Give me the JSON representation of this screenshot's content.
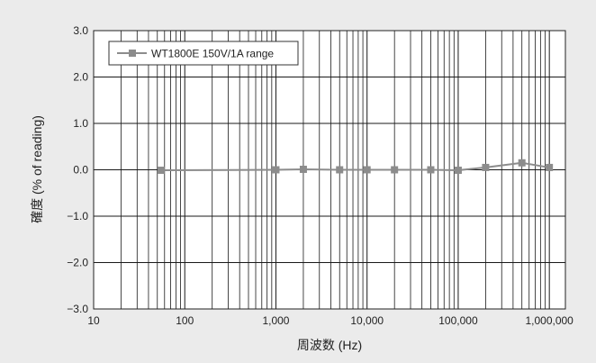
{
  "chart_data": {
    "type": "line",
    "title": "",
    "xlabel": "周波数 (Hz)",
    "ylabel": "確度 (% of reading)",
    "xscale": "log",
    "xlim": [
      10,
      1500000
    ],
    "ylim": [
      -3.0,
      3.0
    ],
    "grid": true,
    "legend_placement": "top-left",
    "x_ticks": [
      {
        "value": 10,
        "label": "10"
      },
      {
        "value": 100,
        "label": "100"
      },
      {
        "value": 1000,
        "label": "1,000"
      },
      {
        "value": 10000,
        "label": "10,000"
      },
      {
        "value": 100000,
        "label": "100,000"
      },
      {
        "value": 1000000,
        "label": "1,000,000"
      }
    ],
    "y_ticks": [
      {
        "value": 3.0,
        "label": "3.0"
      },
      {
        "value": 2.0,
        "label": "2.0"
      },
      {
        "value": 1.0,
        "label": "1.0"
      },
      {
        "value": 0.0,
        "label": "0.0"
      },
      {
        "value": -1.0,
        "label": "−1.0"
      },
      {
        "value": -2.0,
        "label": "−2.0"
      },
      {
        "value": -3.0,
        "label": "−3.0"
      }
    ],
    "series": [
      {
        "name": "WT1800E 150V/1A range",
        "color": "#8c8c8c",
        "marker": "square",
        "x": [
          55,
          1000,
          2000,
          5000,
          10000,
          20000,
          50000,
          100000,
          200000,
          500000,
          1000000
        ],
        "y": [
          -0.01,
          0.0,
          0.01,
          0.0,
          0.0,
          0.0,
          0.0,
          -0.01,
          0.05,
          0.15,
          0.05
        ]
      }
    ]
  }
}
